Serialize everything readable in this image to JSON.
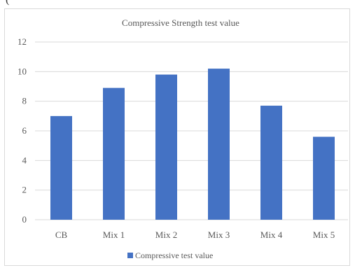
{
  "top_fragment": "(",
  "chart_data": {
    "type": "bar",
    "title": "Compressive  Strength test value",
    "categories": [
      "CB",
      "Mix 1",
      "Mix 2",
      "Mix 3",
      "Mix 4",
      "Mix 5"
    ],
    "series": [
      {
        "name": "Compressive test value",
        "values": [
          7.0,
          8.9,
          9.8,
          10.2,
          7.7,
          5.6
        ]
      }
    ],
    "xlabel": "",
    "ylabel": "",
    "ylim": [
      0,
      12
    ],
    "yticks": [
      0,
      2,
      4,
      6,
      8,
      10,
      12
    ],
    "grid": true,
    "legend_position": "bottom",
    "colors": {
      "bar": "#4472c4",
      "grid": "#d9d9d9",
      "text": "#595959"
    }
  }
}
